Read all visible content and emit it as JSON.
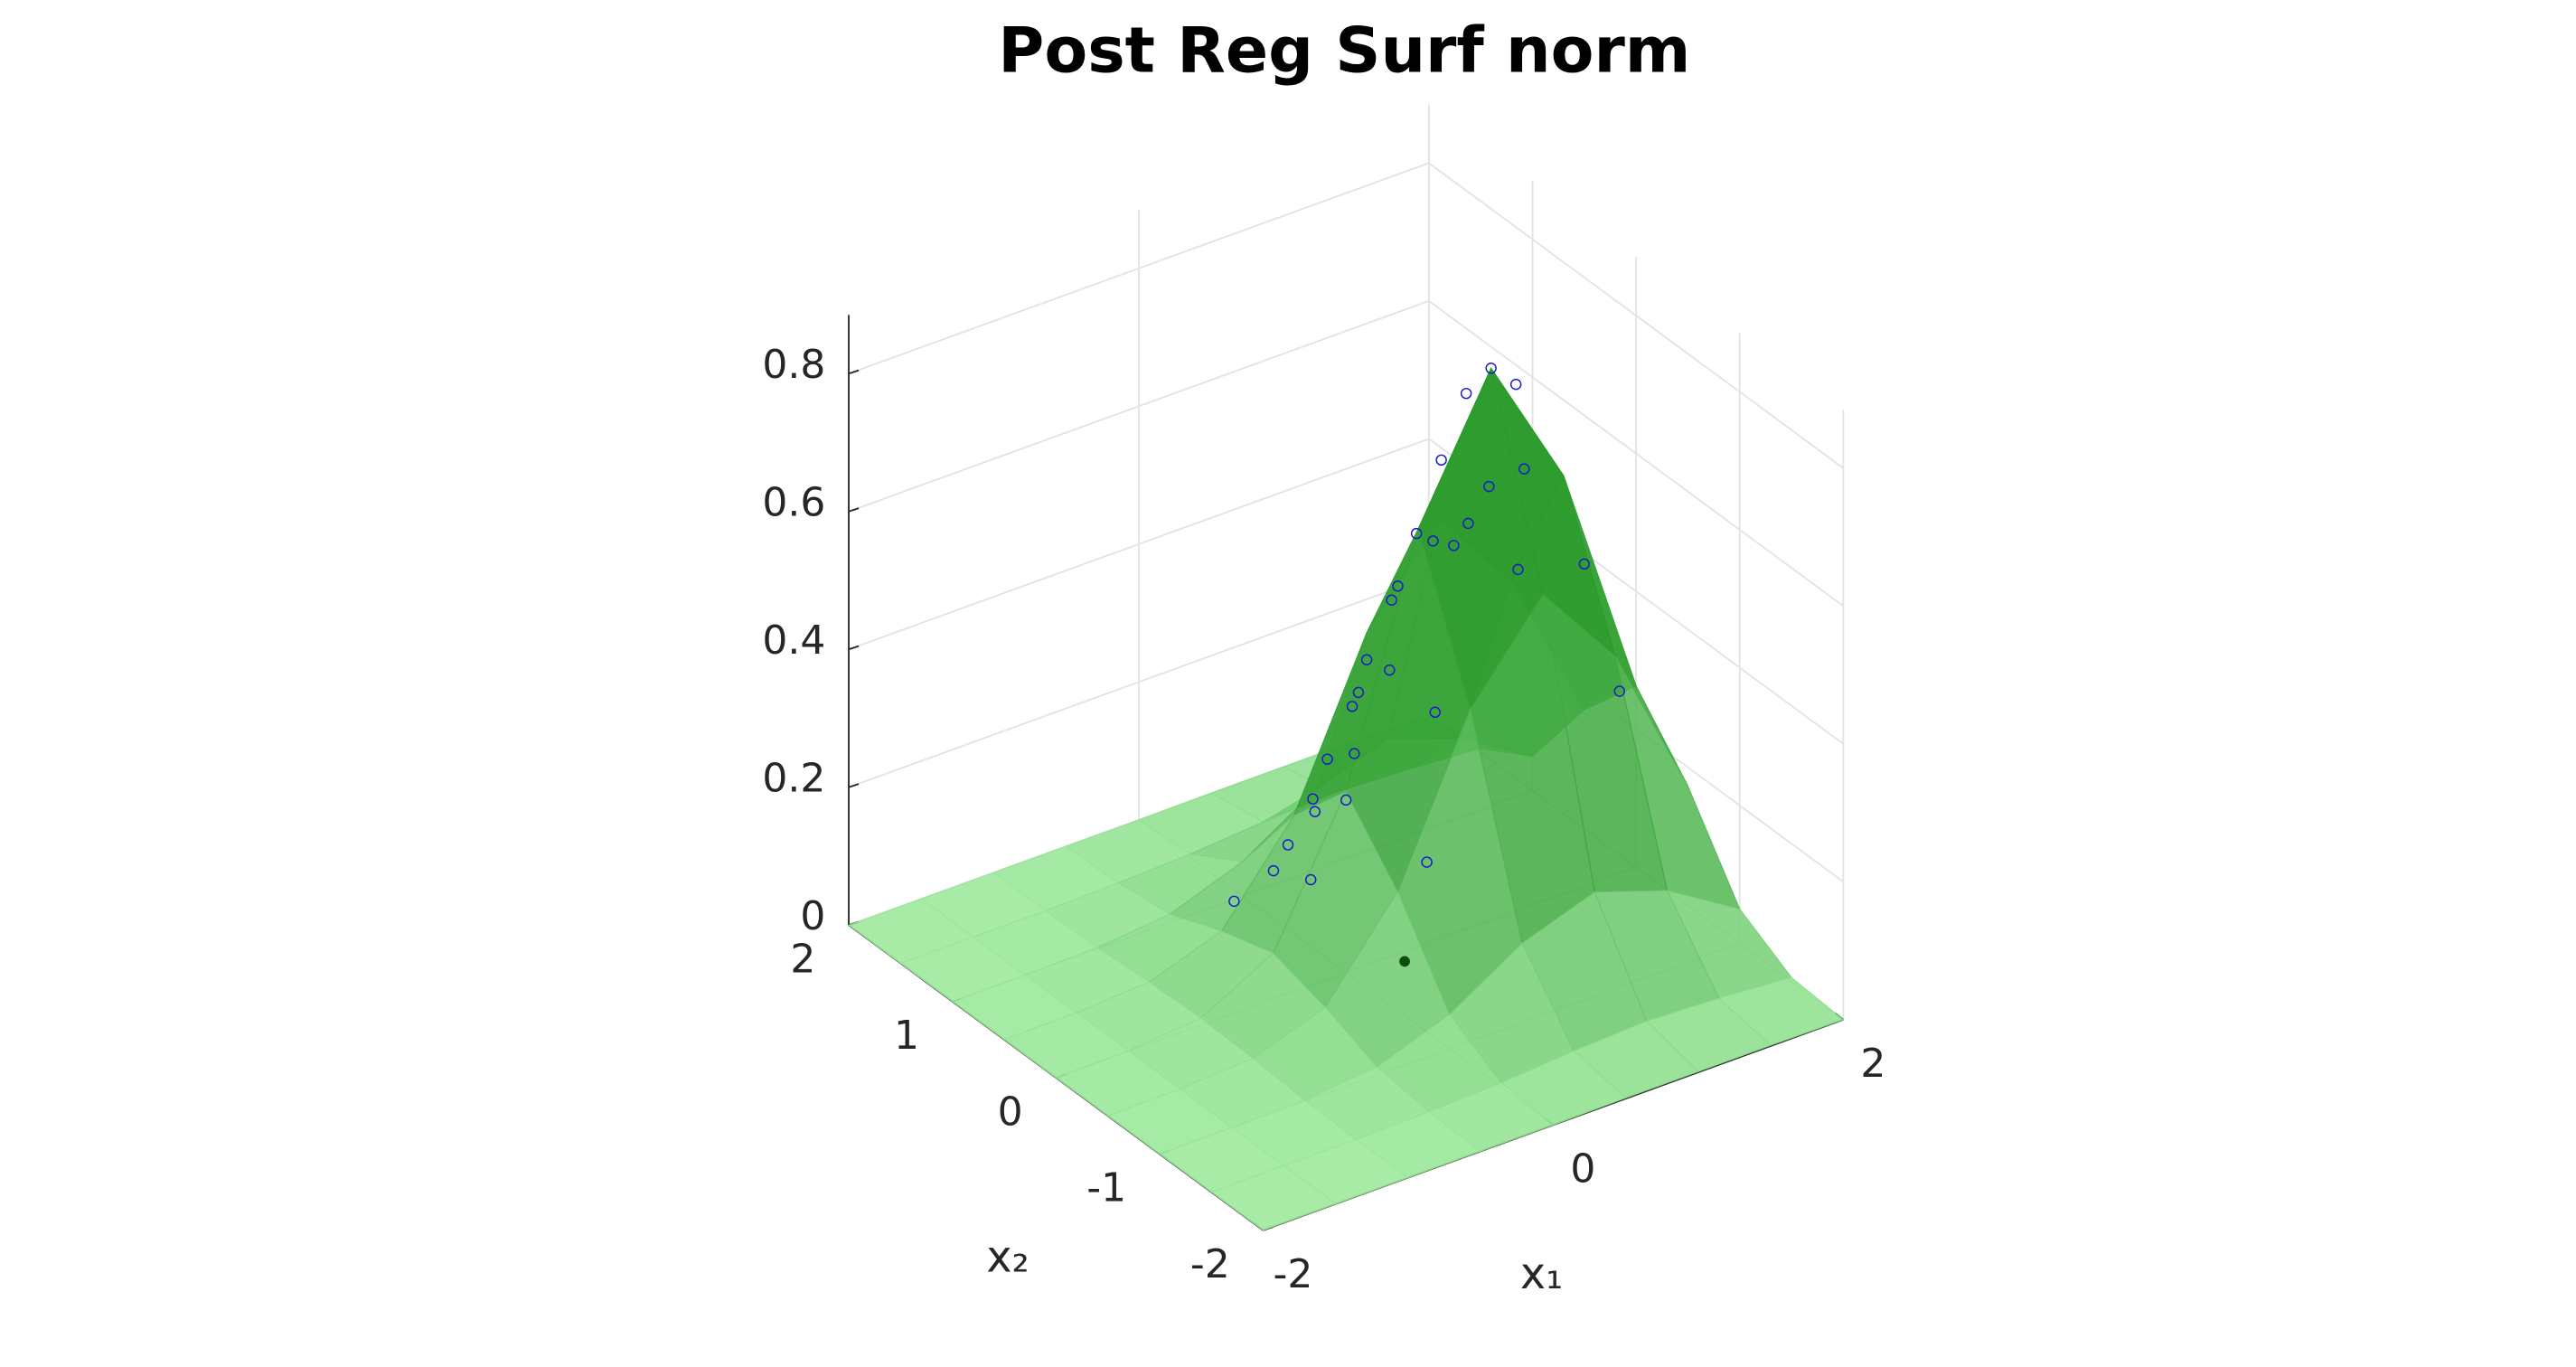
{
  "chart_data": {
    "type": "surface3d",
    "title": "Post Reg Surf norm",
    "xlabel": "x₁",
    "ylabel": "x₂",
    "xlim": [
      -2,
      2
    ],
    "ylim": [
      -2,
      2
    ],
    "zlim": [
      0,
      0.885
    ],
    "xticks": [
      -2,
      0,
      2
    ],
    "yticks": [
      -2,
      -1,
      0,
      1,
      2
    ],
    "zticks": [
      0,
      0.2,
      0.4,
      0.6,
      0.8
    ],
    "grid": true,
    "surface": {
      "x1": [
        -2,
        -1.5,
        -1,
        -0.5,
        0,
        0.5,
        1,
        1.5,
        2
      ],
      "x2": [
        -2,
        -1.5,
        -1,
        -0.5,
        0,
        0.5,
        1,
        1.5,
        2
      ],
      "z": [
        [
          0,
          0,
          0,
          0,
          0,
          0.001,
          0.001,
          0.001,
          0
        ],
        [
          0,
          0,
          0,
          0.002,
          0.006,
          0.014,
          0.019,
          0.014,
          0.006
        ],
        [
          0,
          0,
          0.002,
          0.012,
          0.05,
          0.115,
          0.151,
          0.115,
          0.05
        ],
        [
          0,
          0.001,
          0.007,
          0.043,
          0.173,
          0.399,
          0.527,
          0.399,
          0.173
        ],
        [
          0,
          0.001,
          0.01,
          0.066,
          0.263,
          0.606,
          0.8,
          0.606,
          0.263
        ],
        [
          0,
          0.001,
          0.007,
          0.043,
          0.173,
          0.399,
          0.527,
          0.399,
          0.173
        ],
        [
          0,
          0,
          0.002,
          0.012,
          0.05,
          0.115,
          0.151,
          0.115,
          0.05
        ],
        [
          0,
          0,
          0,
          0.002,
          0.006,
          0.014,
          0.019,
          0.014,
          0.006
        ],
        [
          0,
          0,
          0,
          0,
          0,
          0.001,
          0.001,
          0.001,
          0
        ]
      ],
      "colors": [
        "#98e898",
        "#2a9a2a"
      ],
      "opacity": 0.85
    },
    "scatter": {
      "x1": [
        1.0,
        0.9,
        1.1,
        0.8,
        0.7,
        0.6,
        0.5,
        0.4,
        0.3,
        0.2,
        0.1,
        0.0,
        -0.2,
        1.2,
        1.3,
        1.5,
        1.6,
        0.9,
        0.7,
        0.5,
        0.3,
        0.6,
        0.2,
        0.0,
        -0.1,
        0.4,
        1.1,
        0.8,
        0.2,
        0.0
      ],
      "x2": [
        0.0,
        0.1,
        -0.1,
        0.2,
        0.3,
        0.4,
        0.5,
        0.5,
        0.6,
        0.6,
        0.7,
        0.7,
        0.8,
        0.3,
        0.1,
        -0.2,
        -0.4,
        -0.4,
        -0.2,
        0.2,
        0.3,
        0.0,
        0.2,
        0.3,
        0.2,
        -0.3,
        0.5,
        0.7,
        -0.5,
        0.0
      ],
      "z": [
        0.8,
        0.76,
        0.78,
        0.66,
        0.55,
        0.45,
        0.36,
        0.3,
        0.22,
        0.17,
        0.1,
        0.07,
        0.03,
        0.58,
        0.62,
        0.5,
        0.33,
        0.56,
        0.62,
        0.5,
        0.35,
        0.58,
        0.28,
        0.2,
        0.12,
        0.38,
        0.48,
        0.3,
        0.2,
        0.25
      ],
      "color": "#1a1acc"
    },
    "marker": {
      "x1": 0.34,
      "x2": -0.09,
      "z": 0,
      "color": "#0b4d0b"
    }
  }
}
